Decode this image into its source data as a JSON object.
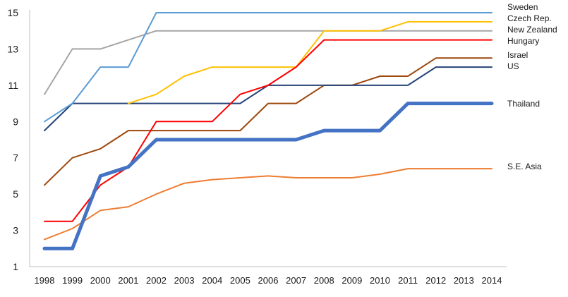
{
  "chart_data": {
    "type": "line",
    "title": "",
    "xlabel": "",
    "ylabel": "",
    "x": [
      1998,
      1999,
      2000,
      2001,
      2002,
      2003,
      2004,
      2005,
      2006,
      2007,
      2008,
      2009,
      2010,
      2011,
      2012,
      2013,
      2014
    ],
    "y_ticks": [
      1,
      3,
      5,
      7,
      9,
      11,
      13,
      15
    ],
    "ylim": [
      1,
      15
    ],
    "grid": false,
    "legend": "right-end labels",
    "series": [
      {
        "name": "Sweden",
        "color": "#5b9bd5",
        "values": [
          9,
          10,
          12,
          12,
          15,
          15,
          15,
          15,
          15,
          15,
          15,
          15,
          15,
          15,
          15,
          15,
          15
        ]
      },
      {
        "name": "Czech Rep.",
        "color": "#ffc000",
        "values": [
          null,
          null,
          null,
          10,
          10.5,
          11.5,
          12,
          12,
          12,
          12,
          14,
          14,
          14,
          14.5,
          14.5,
          14.5,
          14.5
        ]
      },
      {
        "name": "New Zealand",
        "color": "#a5a5a5",
        "values": [
          10.5,
          13,
          13,
          13.5,
          14,
          14,
          14,
          14,
          14,
          14,
          14,
          14,
          14,
          14,
          14,
          14,
          14
        ]
      },
      {
        "name": "Hungary",
        "color": "#ff0000",
        "values": [
          3.5,
          3.5,
          5.5,
          6.5,
          9,
          9,
          9,
          10.5,
          11,
          12,
          13.5,
          13.5,
          13.5,
          13.5,
          13.5,
          13.5,
          13.5
        ]
      },
      {
        "name": "Israel",
        "color": "#9e480e",
        "values": [
          5.5,
          7,
          7.5,
          8.5,
          8.5,
          8.5,
          8.5,
          8.5,
          10,
          10,
          11,
          11,
          11.5,
          11.5,
          12.5,
          12.5,
          12.5
        ]
      },
      {
        "name": "US",
        "color": "#264478",
        "values": [
          8.5,
          10,
          10,
          10,
          10,
          10,
          10,
          10,
          11,
          11,
          11,
          11,
          11,
          11,
          12,
          12,
          12
        ]
      },
      {
        "name": "Thailand",
        "color": "#4472c4",
        "values": [
          2,
          2,
          6,
          6.5,
          8,
          8,
          8,
          8,
          8,
          8,
          8.5,
          8.5,
          8.5,
          10,
          10,
          10,
          10
        ]
      },
      {
        "name": "S.E. Asia",
        "color": "#ed7d31",
        "values": [
          2.5,
          3.1,
          4.1,
          4.3,
          5,
          5.6,
          5.8,
          5.9,
          6,
          5.9,
          5.9,
          5.9,
          6.1,
          6.4,
          6.4,
          6.4,
          6.4
        ]
      }
    ]
  }
}
